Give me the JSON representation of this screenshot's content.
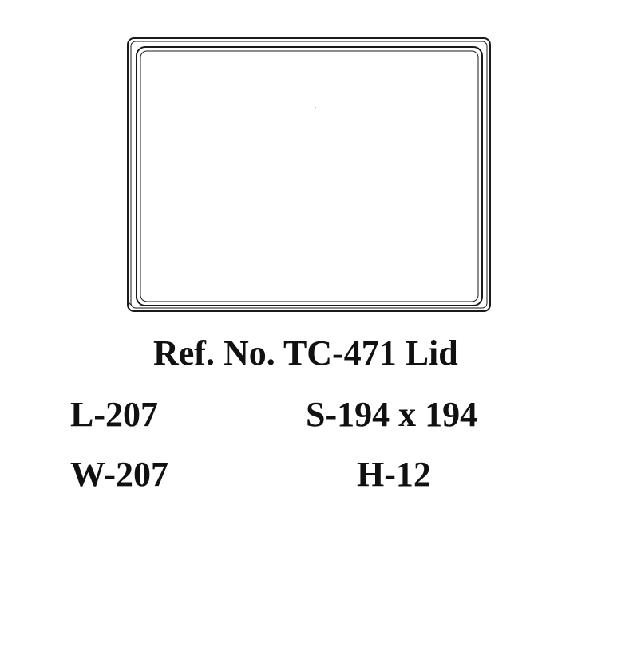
{
  "drawing": {
    "title": "Ref. No. TC-471 Lid"
  },
  "dimensions": {
    "length": "L-207",
    "size": "S-194 x 194",
    "width": "W-207",
    "height": "H-12"
  }
}
